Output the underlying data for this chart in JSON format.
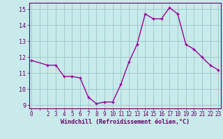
{
  "x": [
    0,
    2,
    3,
    4,
    5,
    6,
    7,
    8,
    9,
    10,
    11,
    12,
    13,
    14,
    15,
    16,
    17,
    18,
    19,
    20,
    21,
    22,
    23
  ],
  "y": [
    11.8,
    11.5,
    11.5,
    10.8,
    10.8,
    10.7,
    9.5,
    9.1,
    9.2,
    9.2,
    10.3,
    11.7,
    12.8,
    14.7,
    14.4,
    14.4,
    15.1,
    14.7,
    12.8,
    12.5,
    12.0,
    11.5,
    11.2
  ],
  "line_color": "#990099",
  "marker": "P",
  "marker_size": 2.5,
  "bg_color": "#c8eaea",
  "grid_color": "#a0cccc",
  "xlabel": "Windchill (Refroidissement éolien,°C)",
  "xlabel_color": "#660066",
  "tick_color": "#660066",
  "ylim": [
    8.8,
    15.4
  ],
  "xlim": [
    -0.3,
    23.3
  ],
  "yticks": [
    9,
    10,
    11,
    12,
    13,
    14,
    15
  ],
  "xticks": [
    0,
    2,
    3,
    4,
    5,
    6,
    7,
    8,
    9,
    10,
    11,
    12,
    13,
    14,
    15,
    16,
    17,
    18,
    19,
    20,
    21,
    22,
    23
  ],
  "linewidth": 1.0,
  "tick_fontsize": 5.5,
  "xlabel_fontsize": 6.0
}
